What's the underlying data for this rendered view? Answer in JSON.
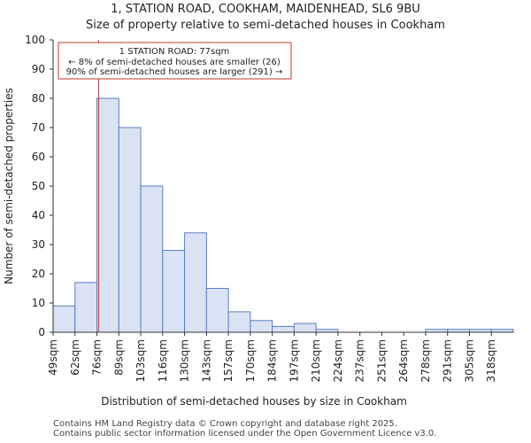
{
  "header": {
    "line1": "1, STATION ROAD, COOKHAM, MAIDENHEAD, SL6 9BU",
    "line2": "Size of property relative to semi-detached houses in Cookham"
  },
  "footer": {
    "line1": "Contains HM Land Registry data © Crown copyright and database right 2025.",
    "line2": "Contains public sector information licensed under the Open Government Licence v3.0."
  },
  "chart_data": {
    "type": "bar",
    "title": "1, STATION ROAD, COOKHAM, MAIDENHEAD, SL6 9BU",
    "subtitle": "Size of property relative to semi-detached houses in Cookham",
    "xlabel": "Distribution of semi-detached houses by size in Cookham",
    "ylabel": "Number of semi-detached properties",
    "categories": [
      "49sqm",
      "62sqm",
      "76sqm",
      "89sqm",
      "103sqm",
      "116sqm",
      "130sqm",
      "143sqm",
      "157sqm",
      "170sqm",
      "184sqm",
      "197sqm",
      "210sqm",
      "224sqm",
      "237sqm",
      "251sqm",
      "264sqm",
      "278sqm",
      "291sqm",
      "305sqm",
      "318sqm"
    ],
    "values": [
      9,
      17,
      80,
      70,
      50,
      28,
      34,
      15,
      7,
      4,
      2,
      3,
      1,
      0,
      0,
      0,
      0,
      1,
      1,
      1,
      1
    ],
    "ylim": [
      0,
      100
    ],
    "yticks": [
      0,
      10,
      20,
      30,
      40,
      50,
      60,
      70,
      80,
      90,
      100
    ],
    "grid": false,
    "bar_color": "#dae2f4",
    "bar_edge_color": "#5a7fc4",
    "marker": {
      "value_sqm": 77,
      "color": "#c0392b"
    },
    "annotation": {
      "line1": "1 STATION ROAD: 77sqm",
      "line2": "← 8% of semi-detached houses are smaller (26)",
      "line3": "90% of semi-detached houses are larger (291) →"
    }
  }
}
